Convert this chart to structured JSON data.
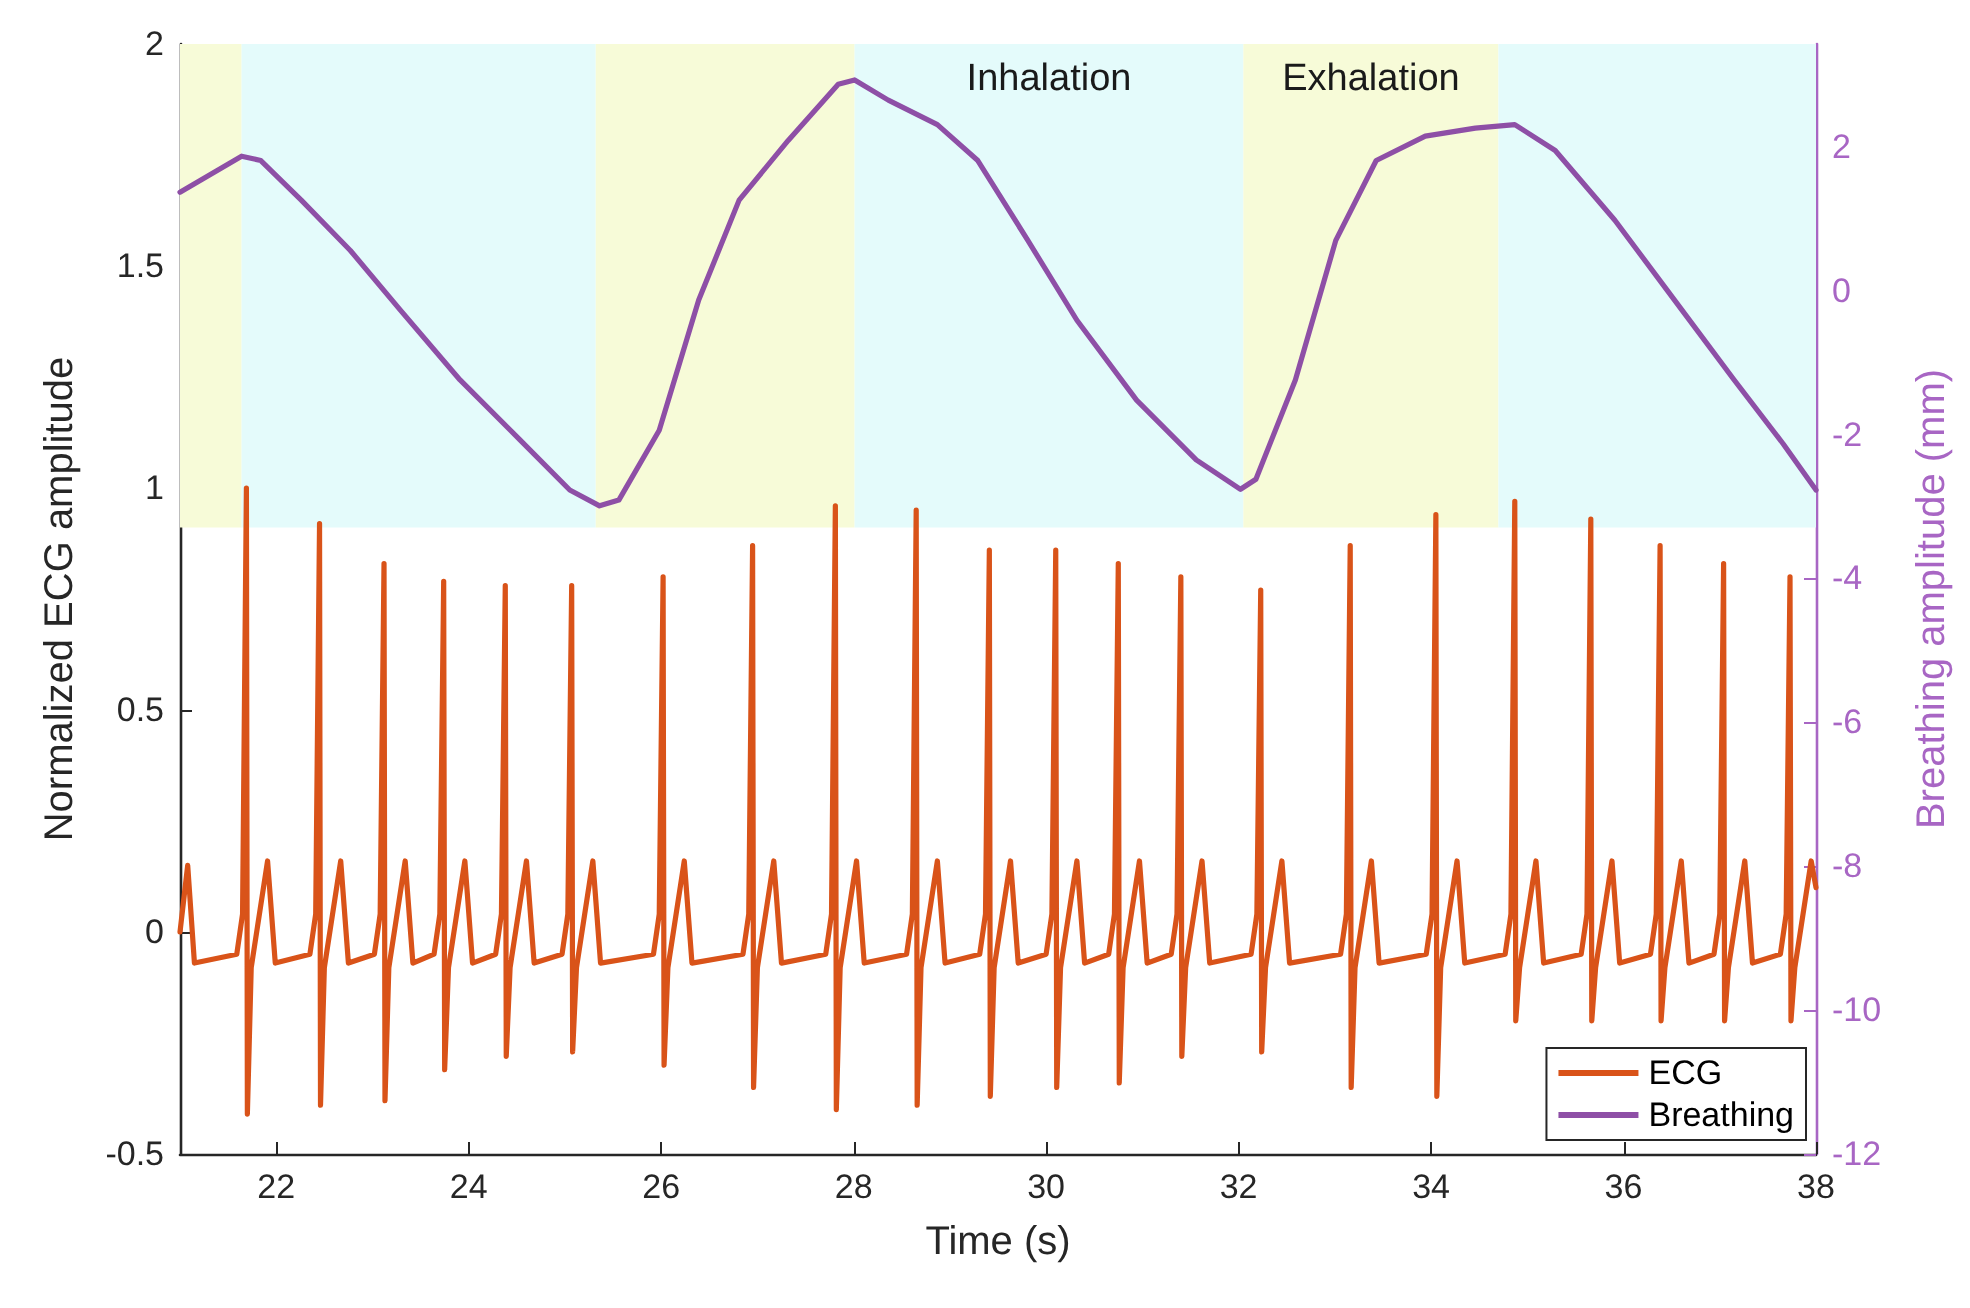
{
  "chart_data": {
    "type": "line",
    "xlabel": "Time (s)",
    "ylabel": "Normalized ECG amplitude",
    "y2label": "Breathing amplitude (mm)",
    "xlim": [
      21,
      38
    ],
    "xticks": [
      22,
      24,
      26,
      28,
      30,
      32,
      34,
      36,
      38
    ],
    "ylim": [
      -0.5,
      2
    ],
    "yticks": [
      -0.5,
      0,
      0.5,
      1,
      1.5,
      2
    ],
    "y2lim": [
      -12,
      3.43
    ],
    "y2ticks": [
      -12,
      -10,
      -8,
      -6,
      -4,
      -2,
      0,
      2
    ],
    "grid": false,
    "legend": "bottom right",
    "marker": "none",
    "bands": [
      {
        "axis": "x",
        "from": 21,
        "to": 21.64,
        "color": "#f7fbd8"
      },
      {
        "axis": "x",
        "from": 21.64,
        "to": 25.32,
        "color": "#e4fbfb"
      },
      {
        "axis": "x",
        "from": 25.32,
        "to": 28.01,
        "color": "#f7fbd8"
      },
      {
        "axis": "x",
        "from": 28.01,
        "to": 32.05,
        "color": "#e4fbfb",
        "label": "Inhalation"
      },
      {
        "axis": "x",
        "from": 32.05,
        "to": 34.7,
        "color": "#f7fbd8",
        "label": "Exhalation"
      },
      {
        "axis": "x",
        "from": 34.7,
        "to": 38,
        "color": "#e4fbfb"
      }
    ],
    "series": [
      {
        "name": "ECG",
        "color": "#d95319",
        "x": [
          21,
          21.08,
          21.15,
          21.59,
          21.65,
          21.69,
          21.7,
          21.74,
          21.91,
          21.99,
          22.35,
          22.41,
          22.45,
          22.46,
          22.5,
          22.67,
          22.75,
          23.02,
          23.08,
          23.12,
          23.13,
          23.17,
          23.34,
          23.42,
          23.64,
          23.7,
          23.74,
          23.75,
          23.79,
          23.96,
          24.04,
          24.28,
          24.34,
          24.38,
          24.39,
          24.43,
          24.6,
          24.68,
          24.97,
          25.03,
          25.07,
          25.08,
          25.12,
          25.29,
          25.37,
          25.92,
          25.98,
          26.02,
          26.03,
          26.07,
          26.24,
          26.32,
          26.85,
          26.91,
          26.95,
          26.96,
          27,
          27.17,
          27.25,
          27.71,
          27.77,
          27.81,
          27.82,
          27.86,
          28.03,
          28.11,
          28.55,
          28.61,
          28.65,
          28.66,
          28.7,
          28.87,
          28.95,
          29.31,
          29.37,
          29.41,
          29.42,
          29.46,
          29.63,
          29.71,
          30,
          30.06,
          30.1,
          30.11,
          30.15,
          30.32,
          30.4,
          30.65,
          30.71,
          30.75,
          30.76,
          30.8,
          30.97,
          31.05,
          31.3,
          31.36,
          31.4,
          31.41,
          31.45,
          31.62,
          31.7,
          32.13,
          32.19,
          32.23,
          32.24,
          32.28,
          32.45,
          32.53,
          33.06,
          33.12,
          33.16,
          33.17,
          33.21,
          33.38,
          33.46,
          33.95,
          34.01,
          34.05,
          34.06,
          34.1,
          34.27,
          34.35,
          34.77,
          34.83,
          34.87,
          34.88,
          34.92,
          35.09,
          35.17,
          35.56,
          35.62,
          35.66,
          35.67,
          35.71,
          35.88,
          35.96,
          36.28,
          36.34,
          36.38,
          36.39,
          36.43,
          36.6,
          36.68,
          36.94,
          37,
          37.04,
          37.05,
          37.09,
          37.26,
          37.34,
          37.63,
          37.69,
          37.73,
          37.74,
          37.78,
          37.95,
          38
        ],
        "values": [
          0,
          0.15,
          -0.07,
          -0.05,
          0.04,
          1,
          -0.41,
          -0.08,
          0.16,
          -0.07,
          -0.05,
          0.04,
          0.92,
          -0.39,
          -0.08,
          0.16,
          -0.07,
          -0.05,
          0.04,
          0.83,
          -0.38,
          -0.08,
          0.16,
          -0.07,
          -0.05,
          0.04,
          0.79,
          -0.31,
          -0.08,
          0.16,
          -0.07,
          -0.05,
          0.04,
          0.78,
          -0.28,
          -0.08,
          0.16,
          -0.07,
          -0.05,
          0.04,
          0.78,
          -0.27,
          -0.08,
          0.16,
          -0.07,
          -0.05,
          0.04,
          0.8,
          -0.3,
          -0.08,
          0.16,
          -0.07,
          -0.05,
          0.04,
          0.87,
          -0.35,
          -0.08,
          0.16,
          -0.07,
          -0.05,
          0.04,
          0.96,
          -0.4,
          -0.08,
          0.16,
          -0.07,
          -0.05,
          0.04,
          0.95,
          -0.39,
          -0.08,
          0.16,
          -0.07,
          -0.05,
          0.04,
          0.86,
          -0.37,
          -0.08,
          0.16,
          -0.07,
          -0.05,
          0.04,
          0.86,
          -0.35,
          -0.08,
          0.16,
          -0.07,
          -0.05,
          0.04,
          0.83,
          -0.34,
          -0.08,
          0.16,
          -0.07,
          -0.05,
          0.04,
          0.8,
          -0.28,
          -0.08,
          0.16,
          -0.07,
          -0.05,
          0.04,
          0.77,
          -0.27,
          -0.08,
          0.16,
          -0.07,
          -0.05,
          0.04,
          0.87,
          -0.35,
          -0.08,
          0.16,
          -0.07,
          -0.05,
          0.04,
          0.94,
          -0.37,
          -0.08,
          0.16,
          -0.07,
          -0.05,
          0.04,
          0.97,
          -0.2,
          -0.08,
          0.16,
          -0.07,
          -0.05,
          0.04,
          0.93,
          -0.2,
          -0.08,
          0.16,
          -0.07,
          -0.05,
          0.04,
          0.87,
          -0.2,
          -0.08,
          0.16,
          -0.07,
          -0.05,
          0.04,
          0.83,
          -0.2,
          -0.08,
          0.16,
          -0.07,
          -0.05,
          0.04,
          0.8,
          -0.2,
          -0.08,
          0.16,
          0.1
        ]
      },
      {
        "name": "Breathing",
        "color": "#8e4fa6",
        "axis": "y2",
        "x": [
          21,
          21.64,
          21.84,
          22.26,
          22.77,
          23.29,
          23.91,
          24.53,
          25.05,
          25.36,
          25.56,
          25.98,
          26.39,
          26.81,
          27.32,
          27.84,
          28.01,
          28.36,
          28.87,
          29.29,
          29.81,
          30.32,
          30.94,
          31.56,
          32.02,
          32.18,
          32.59,
          33.01,
          33.43,
          33.94,
          34.46,
          34.87,
          35.29,
          35.91,
          36.53,
          37.15,
          37.66,
          38
        ],
        "values": [
          1.37,
          1.87,
          1.81,
          1.26,
          0.56,
          -0.27,
          -1.24,
          -2.07,
          -2.77,
          -2.99,
          -2.91,
          -1.94,
          -0.13,
          1.26,
          2.09,
          2.87,
          2.93,
          2.65,
          2.31,
          1.81,
          0.7,
          -0.41,
          -1.52,
          -2.35,
          -2.76,
          -2.62,
          -1.24,
          0.7,
          1.81,
          2.15,
          2.26,
          2.31,
          1.95,
          0.98,
          -0.13,
          -1.24,
          -2.13,
          -2.77
        ]
      }
    ]
  }
}
